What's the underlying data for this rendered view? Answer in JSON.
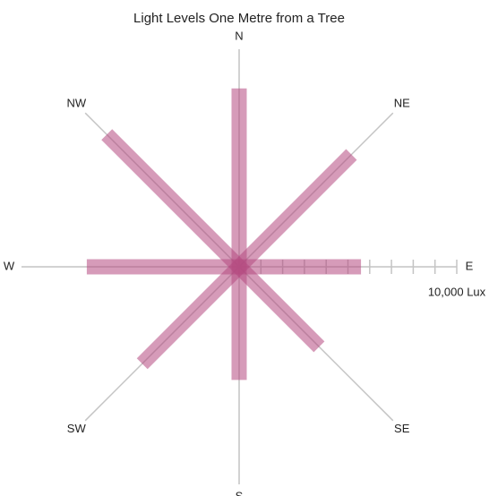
{
  "chart_data": {
    "type": "radial_bar",
    "title": "Light Levels One Metre from a Tree",
    "categories": [
      "N",
      "NE",
      "E",
      "SE",
      "S",
      "SW",
      "W",
      "NW"
    ],
    "values": [
      8200,
      7300,
      5600,
      5200,
      5200,
      6300,
      7000,
      8600
    ],
    "color": "#b5487f",
    "ylim": [
      0,
      10000
    ],
    "yticks": [
      {
        "value": 1000,
        "label": null
      },
      {
        "value": 2000,
        "label": null
      },
      {
        "value": 3000,
        "label": null
      },
      {
        "value": 4000,
        "label": null
      },
      {
        "value": 5000,
        "label": null
      },
      {
        "value": 6000,
        "label": null
      },
      {
        "value": 7000,
        "label": null
      },
      {
        "value": 8000,
        "label": null
      },
      {
        "value": 9000,
        "label": null
      },
      {
        "value": 10000,
        "label": "10,000 Lux"
      }
    ]
  }
}
